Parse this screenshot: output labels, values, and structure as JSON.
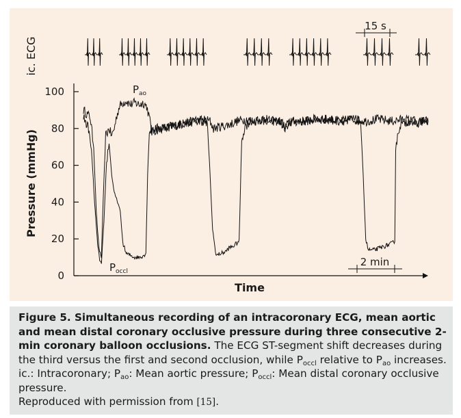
{
  "chart_data": {
    "type": "line",
    "xlabel": "Time",
    "ylabel": "Pressure (mmHg)",
    "ecg_label": "ic. ECG",
    "ylim": [
      0,
      100
    ],
    "yticks": [
      0,
      20,
      40,
      60,
      80,
      100
    ],
    "grid": false,
    "scale_bar_ecg": "15 s",
    "scale_bar_time": "2 min",
    "series": [
      {
        "name": "Pao",
        "label_main": "P",
        "label_sub": "ao",
        "points": [
          [
            0.0,
            90
          ],
          [
            0.8,
            86
          ],
          [
            1.2,
            70
          ],
          [
            1.5,
            35
          ],
          [
            1.8,
            15
          ],
          [
            2.1,
            10
          ],
          [
            2.3,
            40
          ],
          [
            2.6,
            76
          ],
          [
            3.0,
            80
          ],
          [
            3.3,
            76
          ],
          [
            3.6,
            80
          ],
          [
            3.9,
            87
          ],
          [
            4.2,
            92
          ],
          [
            4.6,
            94
          ],
          [
            5.0,
            95
          ],
          [
            5.5,
            93
          ],
          [
            6.0,
            94
          ],
          [
            6.6,
            93
          ],
          [
            7.0,
            94
          ],
          [
            7.4,
            92
          ],
          [
            7.7,
            86
          ],
          [
            8.0,
            78
          ],
          [
            8.5,
            79
          ],
          [
            9.0,
            80
          ],
          [
            10.0,
            81
          ],
          [
            11.0,
            82
          ],
          [
            12.0,
            83
          ],
          [
            13.0,
            84
          ],
          [
            14.0,
            85
          ],
          [
            14.8,
            84
          ],
          [
            15.2,
            80
          ],
          [
            16.0,
            81
          ],
          [
            17.0,
            82
          ],
          [
            18.0,
            84
          ],
          [
            19.0,
            85
          ],
          [
            20.0,
            84
          ],
          [
            21.0,
            85
          ],
          [
            22.0,
            84
          ],
          [
            23.0,
            84
          ],
          [
            23.5,
            80
          ],
          [
            24.0,
            83
          ],
          [
            25.0,
            84
          ],
          [
            26.0,
            84
          ],
          [
            27.0,
            85
          ],
          [
            28.5,
            85
          ],
          [
            30.0,
            84
          ],
          [
            31.5,
            85
          ],
          [
            33.0,
            84
          ],
          [
            34.5,
            85
          ],
          [
            36.0,
            84
          ],
          [
            37.5,
            85
          ],
          [
            38.5,
            84
          ],
          [
            39.0,
            82
          ],
          [
            39.5,
            84
          ],
          [
            40.3,
            84
          ]
        ]
      },
      {
        "name": "Poccl",
        "label_main": "P",
        "label_sub": "occl",
        "points": [
          [
            0.0,
            86
          ],
          [
            0.6,
            80
          ],
          [
            1.0,
            64
          ],
          [
            1.3,
            40
          ],
          [
            1.6,
            20
          ],
          [
            1.9,
            8
          ],
          [
            2.1,
            6
          ],
          [
            2.4,
            30
          ],
          [
            2.7,
            62
          ],
          [
            3.0,
            72
          ],
          [
            3.3,
            55
          ],
          [
            3.6,
            45
          ],
          [
            4.0,
            40
          ],
          [
            4.3,
            35
          ],
          [
            4.6,
            18
          ],
          [
            5.0,
            12
          ],
          [
            5.5,
            11
          ],
          [
            6.0,
            10
          ],
          [
            6.5,
            10
          ],
          [
            7.0,
            11
          ],
          [
            7.3,
            12
          ],
          [
            7.5,
            55
          ],
          [
            7.7,
            78
          ],
          [
            8.0,
            80
          ],
          [
            9.0,
            80
          ],
          [
            10.0,
            81
          ],
          [
            11.0,
            82
          ],
          [
            12.0,
            83
          ],
          [
            13.0,
            84
          ],
          [
            14.0,
            84
          ],
          [
            14.5,
            82
          ],
          [
            14.8,
            55
          ],
          [
            15.1,
            25
          ],
          [
            15.5,
            11
          ],
          [
            16.0,
            12
          ],
          [
            16.6,
            13
          ],
          [
            17.0,
            15
          ],
          [
            17.5,
            16
          ],
          [
            18.0,
            18
          ],
          [
            18.2,
            19
          ],
          [
            18.5,
            74
          ],
          [
            18.9,
            81
          ],
          [
            19.5,
            84
          ],
          [
            20.5,
            84
          ],
          [
            21.5,
            85
          ],
          [
            22.5,
            84
          ],
          [
            23.2,
            84
          ],
          [
            23.5,
            80
          ],
          [
            24.0,
            83
          ],
          [
            25.0,
            84
          ],
          [
            26.0,
            84
          ],
          [
            27.0,
            85
          ],
          [
            28.5,
            85
          ],
          [
            30.0,
            84
          ],
          [
            31.5,
            85
          ],
          [
            32.4,
            84
          ],
          [
            32.7,
            55
          ],
          [
            33.0,
            20
          ],
          [
            33.3,
            14
          ],
          [
            34.0,
            14
          ],
          [
            34.6,
            15
          ],
          [
            35.2,
            16
          ],
          [
            35.8,
            17
          ],
          [
            36.2,
            18
          ],
          [
            36.4,
            19
          ],
          [
            36.5,
            70
          ],
          [
            37.0,
            82
          ],
          [
            38.0,
            84
          ],
          [
            38.7,
            84
          ],
          [
            39.0,
            82
          ],
          [
            39.5,
            84
          ],
          [
            40.3,
            84
          ]
        ]
      }
    ]
  },
  "caption": {
    "title": "Figure 5. Simultaneous recording of an intracoronary ECG, mean aortic and mean distal coronary occlusive pressure during three consecutive 2-min coronary balloon occlusions.",
    "text_a": " The ECG ST-segment shift decreases during the third versus the first and second occlusion, while P",
    "sub_a": "occl",
    "text_b": " relative to P",
    "sub_b": "ao",
    "text_c": " increases.",
    "abbr_a": "ic.: Intracoronary; P",
    "abbr_sub_a": "ao",
    "abbr_b": ": Mean aortic pressure; P",
    "abbr_sub_b": "occl",
    "abbr_c": ": Mean distal coronary occlusive pressure.",
    "repro_a": "Reproduced with permission from ",
    "repro_ref": "[15]",
    "repro_b": "."
  },
  "colors": {
    "panel": "#fbeee2",
    "caption_bg": "#e4e5e5",
    "trace": "#111111"
  }
}
